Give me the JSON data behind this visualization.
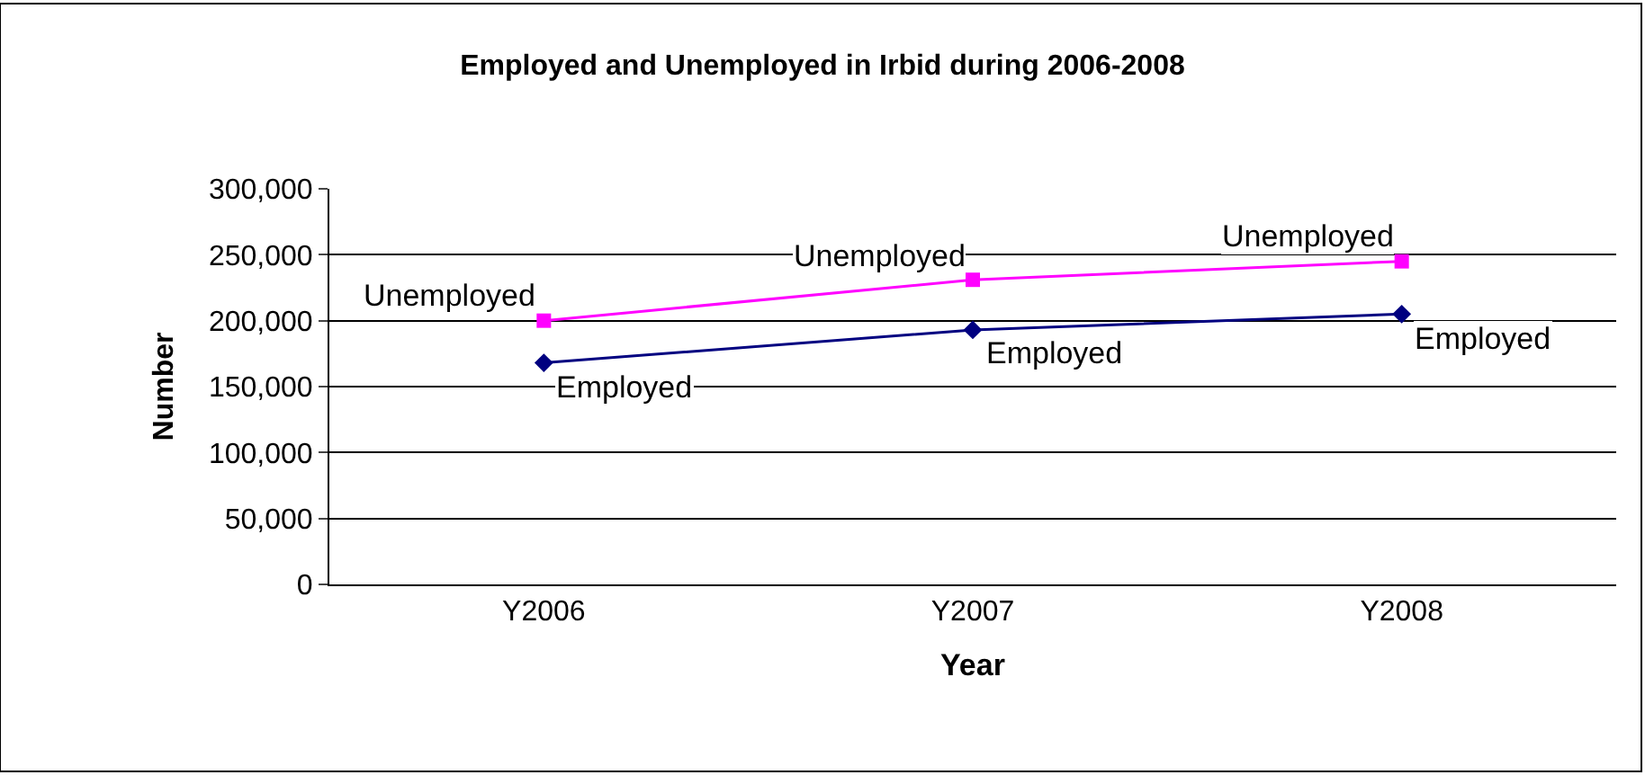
{
  "chart_data": {
    "type": "line",
    "title": "Employed and Unemployed in Irbid during 2006-2008",
    "xlabel": "Year",
    "ylabel": "Number",
    "categories": [
      "Y2006",
      "Y2007",
      "Y2008"
    ],
    "series": [
      {
        "name": "Unemployed",
        "color": "#ff00ff",
        "marker": "square",
        "values": [
          200000,
          231000,
          245000
        ]
      },
      {
        "name": "Employed",
        "color": "#000080",
        "marker": "diamond",
        "values": [
          168000,
          193000,
          205000
        ]
      }
    ],
    "ylim": [
      0,
      300000
    ],
    "yticks": [
      {
        "value": 0,
        "label": "0"
      },
      {
        "value": 50000,
        "label": "50,000"
      },
      {
        "value": 100000,
        "label": "100,000"
      },
      {
        "value": 150000,
        "label": "150,000"
      },
      {
        "value": 200000,
        "label": "200,000"
      },
      {
        "value": 250000,
        "label": "250,000"
      },
      {
        "value": 300000,
        "label": "300,000"
      }
    ],
    "grid": "y",
    "legend": false
  }
}
